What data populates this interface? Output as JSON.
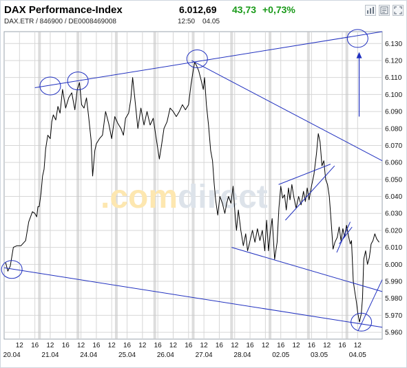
{
  "header": {
    "title": "DAX Performance-Index",
    "subtitle": "DAX.ETR / 846900 / DE0008469008",
    "price": "6.012,69",
    "change": "43,73",
    "change_pct": "+0,73%",
    "time": "12:50",
    "date": "04.05"
  },
  "toolbar": [
    "bar-chart-icon",
    "news-icon",
    "fullscreen-icon"
  ],
  "watermark": {
    "text": ".comdirect",
    "part1": ".com",
    "part2": "direct",
    "color1": "#fde7b0",
    "color2": "#dde3ea"
  },
  "colors": {
    "price_line": "#000000",
    "trendline": "#1f2fbf",
    "grid": "#d6d6d6",
    "day_separator": "#c7c7c7",
    "change_positive": "#1a9a1a"
  },
  "chart_data": {
    "type": "line",
    "ylim": [
      5956,
      6137
    ],
    "y_ticks": [
      5960,
      5970,
      5980,
      5990,
      6000,
      6010,
      6020,
      6030,
      6040,
      6050,
      6060,
      6070,
      6080,
      6090,
      6100,
      6110,
      6120,
      6130
    ],
    "y_tick_labels": [
      "5.960",
      "5.970",
      "5.980",
      "5.990",
      "6.000",
      "6.010",
      "6.020",
      "6.030",
      "6.040",
      "6.050",
      "6.060",
      "6.070",
      "6.080",
      "6.090",
      "6.100",
      "6.110",
      "6.120",
      "6.130"
    ],
    "x_range": [
      0,
      12.3
    ],
    "hour_ticks": [
      {
        "x": 0.5,
        "label": "12"
      },
      {
        "x": 1,
        "label": "16"
      },
      {
        "x": 1.5,
        "label": "12"
      },
      {
        "x": 2,
        "label": "16"
      },
      {
        "x": 2.5,
        "label": "12"
      },
      {
        "x": 3,
        "label": "16"
      },
      {
        "x": 3.5,
        "label": "12"
      },
      {
        "x": 4,
        "label": "16"
      },
      {
        "x": 4.5,
        "label": "12"
      },
      {
        "x": 5,
        "label": "16"
      },
      {
        "x": 5.5,
        "label": "12"
      },
      {
        "x": 6,
        "label": "16"
      },
      {
        "x": 6.5,
        "label": "12"
      },
      {
        "x": 7,
        "label": "16"
      },
      {
        "x": 7.5,
        "label": "12"
      },
      {
        "x": 8,
        "label": "16"
      },
      {
        "x": 8.5,
        "label": "12"
      },
      {
        "x": 9,
        "label": "16"
      },
      {
        "x": 9.5,
        "label": "12"
      },
      {
        "x": 10,
        "label": "16"
      },
      {
        "x": 10.5,
        "label": "12"
      },
      {
        "x": 11,
        "label": "16"
      },
      {
        "x": 11.5,
        "label": "12"
      }
    ],
    "day_ticks": [
      {
        "x": 0.25,
        "label": "20.04"
      },
      {
        "x": 1.5,
        "label": "21.04"
      },
      {
        "x": 2.75,
        "label": "24.04"
      },
      {
        "x": 4,
        "label": "25.04"
      },
      {
        "x": 5.25,
        "label": "26.04"
      },
      {
        "x": 6.5,
        "label": "27.04"
      },
      {
        "x": 7.75,
        "label": "28.04"
      },
      {
        "x": 9,
        "label": "02.05"
      },
      {
        "x": 10.25,
        "label": "03.05"
      },
      {
        "x": 11.5,
        "label": "04.05"
      }
    ],
    "day_boundaries": [
      1.15,
      2.4,
      3.65,
      4.9,
      6.15,
      7.4,
      8.65,
      9.9,
      11.15
    ],
    "series": [
      {
        "points": [
          [
            0.05,
            6001
          ],
          [
            0.12,
            5996
          ],
          [
            0.2,
            5999
          ],
          [
            0.3,
            6010
          ],
          [
            0.42,
            6011
          ],
          [
            0.55,
            6011
          ],
          [
            0.7,
            6014
          ],
          [
            0.8,
            6025
          ],
          [
            0.92,
            6031
          ],
          [
            1.0,
            6030
          ],
          [
            1.06,
            6028
          ],
          [
            1.1,
            6034
          ],
          [
            1.14,
            6034
          ],
          [
            1.2,
            6042
          ],
          [
            1.25,
            6052
          ],
          [
            1.3,
            6056
          ],
          [
            1.35,
            6068
          ],
          [
            1.42,
            6076
          ],
          [
            1.5,
            6074
          ],
          [
            1.55,
            6084
          ],
          [
            1.6,
            6088
          ],
          [
            1.68,
            6085
          ],
          [
            1.75,
            6093
          ],
          [
            1.82,
            6089
          ],
          [
            1.9,
            6103
          ],
          [
            2.0,
            6092
          ],
          [
            2.1,
            6098
          ],
          [
            2.2,
            6101
          ],
          [
            2.3,
            6091
          ],
          [
            2.38,
            6103
          ],
          [
            2.45,
            6107
          ],
          [
            2.52,
            6094
          ],
          [
            2.6,
            6092
          ],
          [
            2.68,
            6098
          ],
          [
            2.75,
            6087
          ],
          [
            2.83,
            6073
          ],
          [
            2.88,
            6052
          ],
          [
            2.95,
            6067
          ],
          [
            3.0,
            6071
          ],
          [
            3.1,
            6074
          ],
          [
            3.2,
            6076
          ],
          [
            3.3,
            6090
          ],
          [
            3.4,
            6083
          ],
          [
            3.5,
            6074
          ],
          [
            3.6,
            6087
          ],
          [
            3.7,
            6083
          ],
          [
            3.8,
            6080
          ],
          [
            3.88,
            6076
          ],
          [
            3.95,
            6086
          ],
          [
            4.05,
            6089
          ],
          [
            4.12,
            6097
          ],
          [
            4.18,
            6110
          ],
          [
            4.25,
            6098
          ],
          [
            4.35,
            6080
          ],
          [
            4.45,
            6092
          ],
          [
            4.55,
            6082
          ],
          [
            4.65,
            6090
          ],
          [
            4.75,
            6082
          ],
          [
            4.85,
            6086
          ],
          [
            4.95,
            6074
          ],
          [
            5.05,
            6062
          ],
          [
            5.12,
            6070
          ],
          [
            5.2,
            6080
          ],
          [
            5.3,
            6084
          ],
          [
            5.4,
            6092
          ],
          [
            5.5,
            6090
          ],
          [
            5.6,
            6087
          ],
          [
            5.7,
            6090
          ],
          [
            5.8,
            6094
          ],
          [
            5.9,
            6091
          ],
          [
            6.0,
            6094
          ],
          [
            6.08,
            6106
          ],
          [
            6.15,
            6114
          ],
          [
            6.2,
            6119
          ],
          [
            6.26,
            6117
          ],
          [
            6.33,
            6114
          ],
          [
            6.4,
            6109
          ],
          [
            6.48,
            6103
          ],
          [
            6.52,
            6110
          ],
          [
            6.58,
            6094
          ],
          [
            6.65,
            6082
          ],
          [
            6.72,
            6067
          ],
          [
            6.78,
            6061
          ],
          [
            6.83,
            6048
          ],
          [
            6.88,
            6038
          ],
          [
            6.95,
            6029
          ],
          [
            7.02,
            6040
          ],
          [
            7.1,
            6036
          ],
          [
            7.18,
            6030
          ],
          [
            7.24,
            6036
          ],
          [
            7.3,
            6040
          ],
          [
            7.38,
            6036
          ],
          [
            7.45,
            6046
          ],
          [
            7.52,
            6028
          ],
          [
            7.56,
            6020
          ],
          [
            7.62,
            6032
          ],
          [
            7.7,
            6020
          ],
          [
            7.78,
            6011
          ],
          [
            7.86,
            6018
          ],
          [
            7.92,
            6008
          ],
          [
            8.0,
            6014
          ],
          [
            8.08,
            6020
          ],
          [
            8.16,
            6013
          ],
          [
            8.24,
            6021
          ],
          [
            8.32,
            6014
          ],
          [
            8.4,
            6020
          ],
          [
            8.48,
            6008
          ],
          [
            8.54,
            6026
          ],
          [
            8.6,
            6008
          ],
          [
            8.66,
            6019
          ],
          [
            8.72,
            6027
          ],
          [
            8.8,
            6003
          ],
          [
            8.88,
            6013
          ],
          [
            8.94,
            6033
          ],
          [
            9.0,
            6046
          ],
          [
            9.06,
            6039
          ],
          [
            9.12,
            6041
          ],
          [
            9.18,
            6032
          ],
          [
            9.25,
            6045
          ],
          [
            9.3,
            6038
          ],
          [
            9.36,
            6047
          ],
          [
            9.42,
            6040
          ],
          [
            9.5,
            6033
          ],
          [
            9.58,
            6040
          ],
          [
            9.66,
            6035
          ],
          [
            9.74,
            6043
          ],
          [
            9.8,
            6037
          ],
          [
            9.86,
            6045
          ],
          [
            9.92,
            6038
          ],
          [
            10.0,
            6046
          ],
          [
            10.08,
            6053
          ],
          [
            10.16,
            6065
          ],
          [
            10.22,
            6077
          ],
          [
            10.28,
            6072
          ],
          [
            10.34,
            6058
          ],
          [
            10.4,
            6061
          ],
          [
            10.46,
            6050
          ],
          [
            10.52,
            6047
          ],
          [
            10.58,
            6040
          ],
          [
            10.64,
            6025
          ],
          [
            10.7,
            6009
          ],
          [
            10.76,
            6013
          ],
          [
            10.84,
            6016
          ],
          [
            10.9,
            6022
          ],
          [
            10.96,
            6014
          ],
          [
            11.02,
            6021
          ],
          [
            11.08,
            6016
          ],
          [
            11.14,
            6023
          ],
          [
            11.2,
            6017
          ],
          [
            11.26,
            6012
          ],
          [
            11.3,
            6014
          ],
          [
            11.36,
            5990
          ],
          [
            11.4,
            5985
          ],
          [
            11.46,
            5978
          ],
          [
            11.5,
            5972
          ],
          [
            11.56,
            5966
          ],
          [
            11.62,
            5971
          ],
          [
            11.66,
            5980
          ],
          [
            11.7,
            6003
          ],
          [
            11.76,
            6008
          ],
          [
            11.82,
            6000
          ],
          [
            11.88,
            6004
          ],
          [
            11.94,
            6012
          ],
          [
            12.0,
            6014
          ],
          [
            12.06,
            6018
          ],
          [
            12.12,
            6015
          ],
          [
            12.2,
            6013
          ]
        ]
      }
    ],
    "annotations": {
      "lines": [
        [
          [
            1.0,
            6104
          ],
          [
            12.3,
            6137
          ]
        ],
        [
          [
            6.1,
            6120
          ],
          [
            12.3,
            6061
          ]
        ],
        [
          [
            0.0,
            5998
          ],
          [
            12.3,
            5963
          ]
        ],
        [
          [
            7.4,
            6010
          ],
          [
            12.3,
            5984
          ]
        ],
        [
          [
            8.93,
            6047
          ],
          [
            10.62,
            6059
          ]
        ],
        [
          [
            9.15,
            6026
          ],
          [
            10.75,
            6058
          ]
        ],
        [
          [
            10.82,
            6007
          ],
          [
            11.26,
            6025
          ]
        ],
        [
          [
            10.9,
            6012
          ],
          [
            11.32,
            6022
          ]
        ],
        [
          [
            11.52,
            5961
          ],
          [
            12.3,
            5991
          ]
        ]
      ],
      "circles": [
        [
          0.25,
          5997
        ],
        [
          1.5,
          6105
        ],
        [
          2.4,
          6108
        ],
        [
          6.28,
          6121
        ],
        [
          11.5,
          6133
        ],
        [
          11.62,
          5966
        ]
      ],
      "arrow": [
        [
          11.55,
          6087
        ],
        [
          11.55,
          6125
        ]
      ]
    }
  }
}
